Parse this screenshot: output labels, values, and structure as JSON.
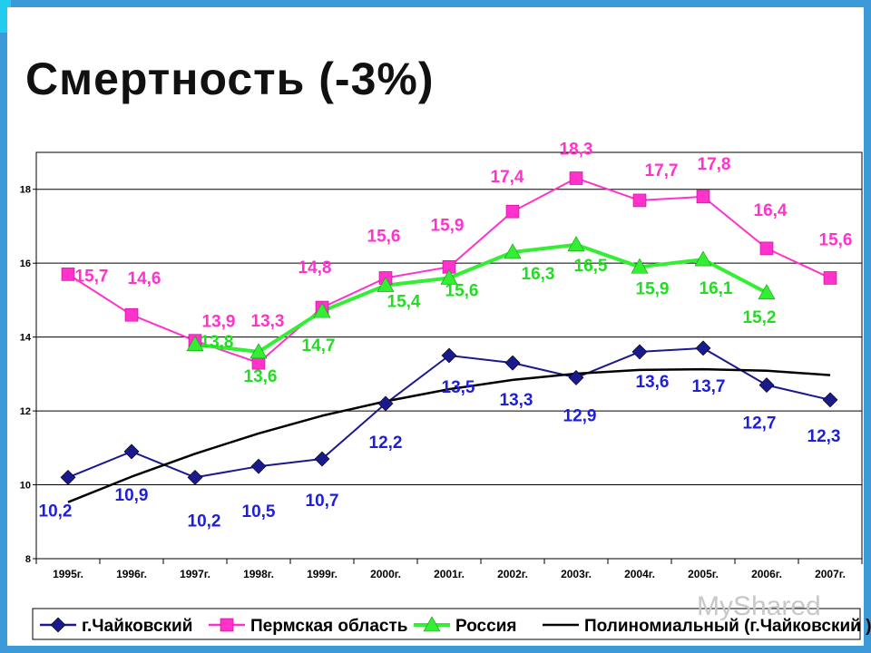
{
  "slide": {
    "title": "Смертность   (-3%)",
    "watermark": "MyShared"
  },
  "colors": {
    "chaikovsky": "#1a1a8c",
    "perm": "#ff33cc",
    "russia": "#33ee33",
    "trend": "#000000",
    "label_blue": "#1f1fd6",
    "label_magenta": "#ff33cc",
    "label_green": "#22dd22"
  },
  "chart_data": {
    "type": "line",
    "title": "",
    "xlabel": "",
    "ylabel": "",
    "categories": [
      "1995г.",
      "1996г.",
      "1997г.",
      "1998г.",
      "1999г.",
      "2000г.",
      "2001г.",
      "2002г.",
      "2003г.",
      "2004г.",
      "2005г.",
      "2006г.",
      "2007г."
    ],
    "ylim": [
      8,
      19
    ],
    "yticks": [
      8,
      10,
      12,
      14,
      16,
      18
    ],
    "grid": true,
    "legend_position": "bottom",
    "series": [
      {
        "name": "г.Чайковский",
        "marker": "diamond",
        "values": [
          10.2,
          10.9,
          10.2,
          10.5,
          10.7,
          12.2,
          13.5,
          13.3,
          12.9,
          13.6,
          13.7,
          12.7,
          12.3
        ],
        "labels": [
          "10,2",
          "10,9",
          "10,2",
          "10,5",
          "10,7",
          "12,2",
          "13,5",
          "13,3",
          "12,9",
          "13,6",
          "13,7",
          "12,7",
          "12,3"
        ]
      },
      {
        "name": "Пермская область",
        "marker": "square",
        "values": [
          15.7,
          14.6,
          13.9,
          13.3,
          14.8,
          15.6,
          15.9,
          17.4,
          18.3,
          17.7,
          17.8,
          16.4,
          15.6
        ],
        "labels": [
          "15,7",
          "14,6",
          "13,9",
          "13,3",
          "14,8",
          "15,6",
          "15,9",
          "17,4",
          "18,3",
          "17,7",
          "17,8",
          "16,4",
          "15,6"
        ]
      },
      {
        "name": "Россия",
        "marker": "triangle",
        "values": [
          null,
          null,
          13.8,
          13.6,
          14.7,
          15.4,
          15.6,
          16.3,
          16.5,
          15.9,
          16.1,
          15.2,
          null
        ],
        "labels": [
          "",
          "",
          "13,8",
          "13,6",
          "14,7",
          "15,4",
          "15,6",
          "16,3",
          "16,5",
          "15,9",
          "16,1",
          "15,2",
          ""
        ]
      },
      {
        "name": "Полиномиальный (г.Чайковский )",
        "marker": "none",
        "values": [
          9.53,
          10.22,
          10.84,
          11.39,
          11.87,
          12.26,
          12.59,
          12.84,
          13.01,
          13.11,
          13.13,
          13.09,
          12.97
        ]
      }
    ]
  }
}
